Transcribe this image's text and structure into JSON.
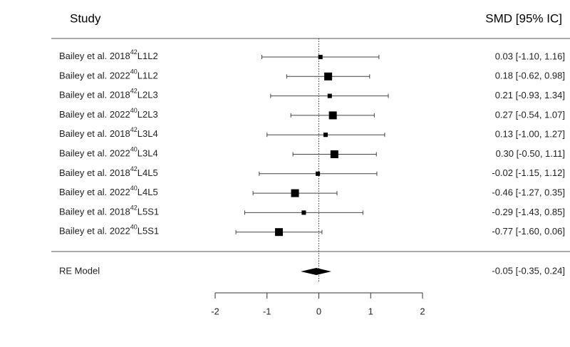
{
  "chart_data": {
    "type": "forest",
    "header_study": "Study",
    "header_effect": "SMD [95% IC]",
    "studies": [
      "Bailey et al. 2018",
      "Bailey et al. 2022",
      "Bailey et al. 2018",
      "Bailey et al. 2022",
      "Bailey et al. 2018",
      "Bailey et al. 2022",
      "Bailey et al. 2018",
      "Bailey et al. 2022",
      "Bailey et al. 2018",
      "Bailey et al. 2022"
    ],
    "refs": [
      "42",
      "40",
      "42",
      "40",
      "42",
      "40",
      "42",
      "40",
      "42",
      "40"
    ],
    "levels": [
      "L1L2",
      "L1L2",
      "L2L3",
      "L2L3",
      "L3L4",
      "L3L4",
      "L4L5",
      "L4L5",
      "L5S1",
      "L5S1"
    ],
    "values": [
      0.03,
      0.18,
      0.21,
      0.27,
      0.13,
      0.3,
      -0.02,
      -0.46,
      -0.29,
      -0.77
    ],
    "lower": [
      -1.1,
      -0.62,
      -0.93,
      -0.54,
      -1.0,
      -0.5,
      -1.15,
      -1.27,
      -1.43,
      -1.6
    ],
    "upper": [
      1.16,
      0.98,
      1.34,
      1.07,
      1.27,
      1.11,
      1.12,
      0.35,
      0.85,
      0.06
    ],
    "weights": [
      3,
      17,
      3,
      17,
      3,
      17,
      3,
      17,
      3,
      17
    ],
    "value_labels": [
      "0.03 [-1.10, 1.16]",
      "0.18 [-0.62, 0.98]",
      "0.21 [-0.93, 1.34]",
      "0.27 [-0.54, 1.07]",
      "0.13 [-1.00, 1.27]",
      "0.30 [-0.50, 1.11]",
      "-0.02 [-1.15, 1.12]",
      "-0.46 [-1.27, 0.35]",
      "-0.29 [-1.43, 0.85]",
      "-0.77 [-1.60, 0.06]"
    ],
    "pooled": {
      "label": "RE Model",
      "value": -0.05,
      "lower": -0.35,
      "upper": 0.24,
      "value_label": "-0.05 [-0.35, 0.24]"
    },
    "xlim": [
      -2,
      2
    ],
    "xticks": [
      -2,
      -1,
      0,
      1,
      2
    ],
    "color": "#000000"
  }
}
